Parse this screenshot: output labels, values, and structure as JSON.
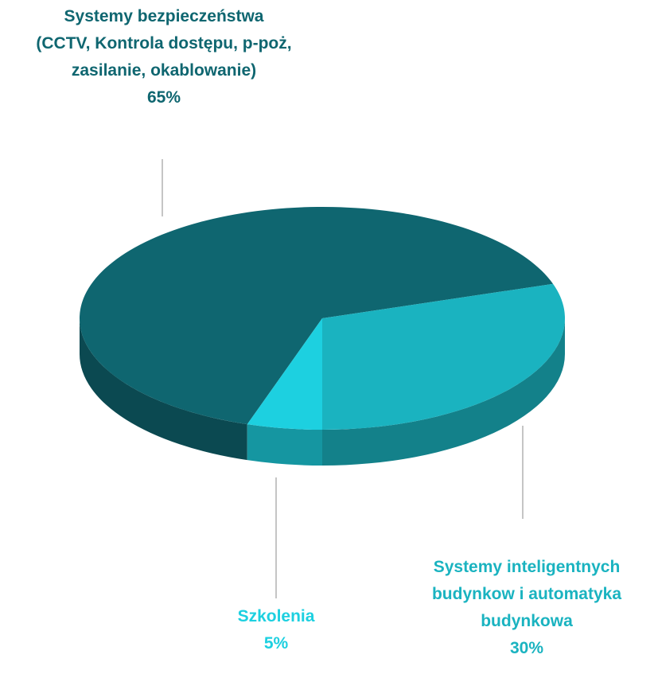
{
  "chart_data": {
    "type": "pie3d",
    "categories": [
      "Systemy bezpieczeństwa\n(CCTV, Kontrola dostępu, p-poż,\nzasilanie, okablowanie)",
      "Systemy inteligentnych\nbudynkow i automatyka\nbudynkowa",
      "Szkolenia"
    ],
    "values": [
      65,
      30,
      5
    ],
    "value_labels": [
      "65%",
      "30%",
      "5%"
    ],
    "colors": [
      "#0f6670",
      "#1ab3c0",
      "#1dd0e0"
    ]
  }
}
